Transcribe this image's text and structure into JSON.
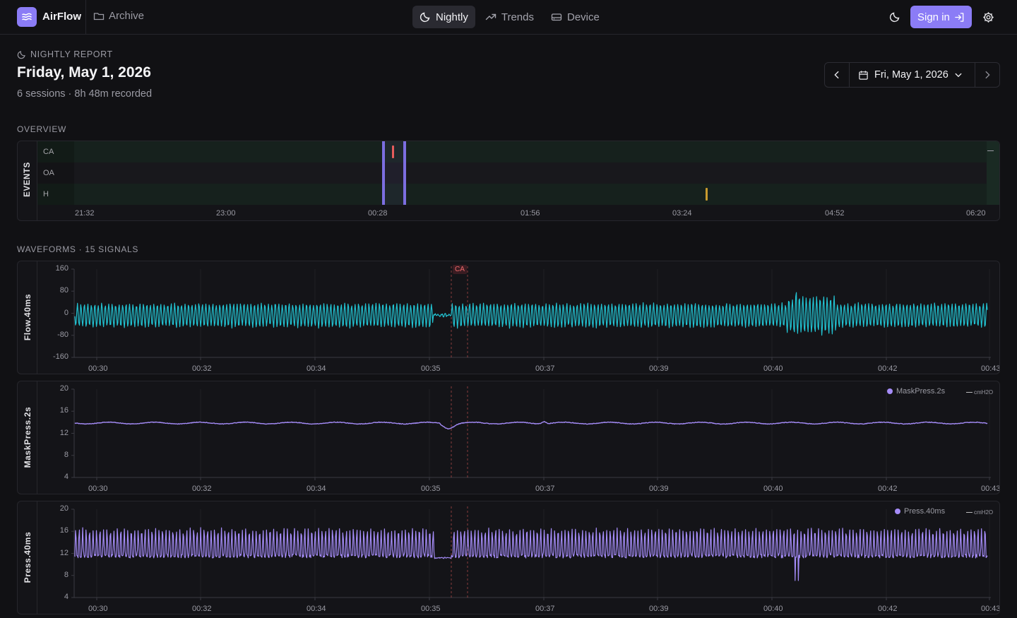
{
  "app": {
    "brand": "AirFlow",
    "archive_label": "Archive"
  },
  "nav": {
    "items": [
      {
        "label": "Nightly",
        "icon": "moon-icon",
        "active": true
      },
      {
        "label": "Trends",
        "icon": "trend-up-icon",
        "active": false
      },
      {
        "label": "Device",
        "icon": "device-icon",
        "active": false
      }
    ]
  },
  "auth": {
    "signin_label": "Sign in"
  },
  "colors": {
    "accent": "#8b7cf6",
    "flow": "#22c3d2",
    "pressure": "#a58cf8",
    "ca": "#e65c5c",
    "h": "#c89a2e"
  },
  "header": {
    "kicker": "NIGHTLY REPORT",
    "title": "Friday, May 1, 2026",
    "subtitle": "6 sessions · 8h 48m recorded"
  },
  "datepicker": {
    "value": "Fri, May 1, 2026"
  },
  "overview": {
    "label": "OVERVIEW",
    "side_label": "EVENTS",
    "rows": [
      "CA",
      "OA",
      "H"
    ],
    "axis": [
      "21:32",
      "23:00",
      "00:28",
      "01:56",
      "03:24",
      "04:52",
      "06:20"
    ]
  },
  "waveforms": {
    "label": "WAVEFORMS · 15 SIGNALS",
    "x_ticks": [
      "00:30",
      "00:32",
      "00:34",
      "00:35",
      "00:37",
      "00:39",
      "00:40",
      "00:42",
      "00:43"
    ],
    "event_badge": "CA",
    "panels": [
      {
        "name": "Flow.40ms",
        "y_ticks": [
          "160",
          "80",
          "0",
          "-80",
          "-160"
        ],
        "ylim": [
          -160,
          160
        ]
      },
      {
        "name": "MaskPress.2s",
        "y_ticks": [
          "20",
          "16",
          "12",
          "8",
          "4"
        ],
        "ylim": [
          4,
          20
        ],
        "legend": "MaskPress.2s",
        "unit": "cmH2O"
      },
      {
        "name": "Press.40ms",
        "y_ticks": [
          "20",
          "16",
          "12",
          "8",
          "4"
        ],
        "ylim": [
          4,
          20
        ],
        "legend": "Press.40ms",
        "unit": "cmH2O"
      }
    ]
  }
}
